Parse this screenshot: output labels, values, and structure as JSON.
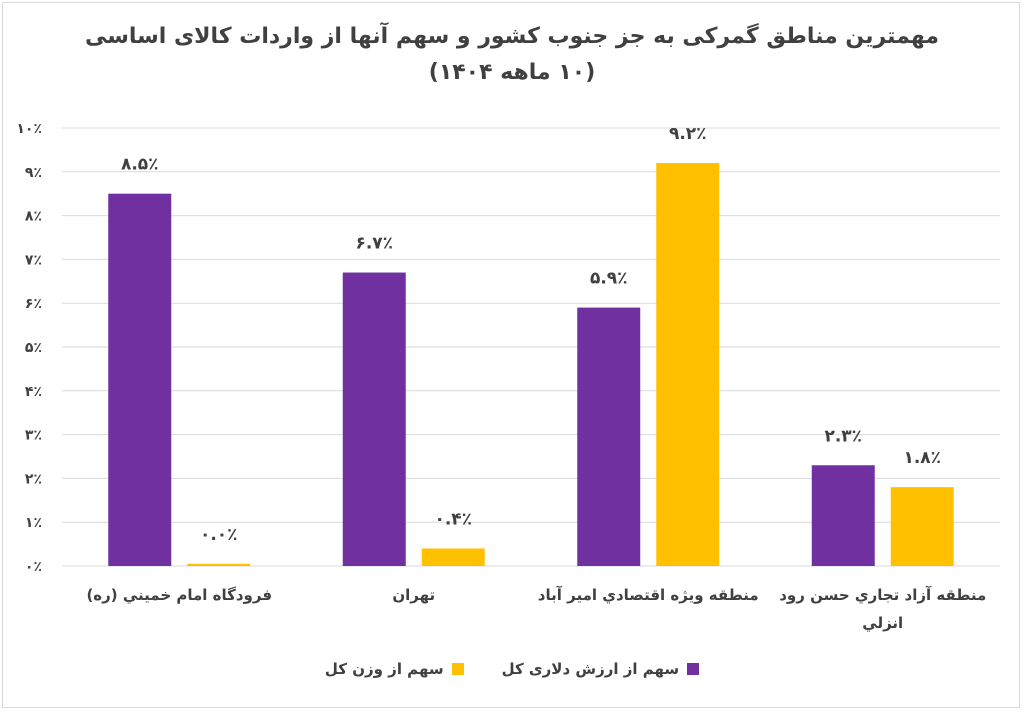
{
  "chart_data": {
    "type": "bar",
    "title": [
      "مهمترین مناطق گمرکی به جز جنوب کشور و سهم آنها از واردات کالای اساسی",
      "(۱۰ ماهه ۱۴۰۴)"
    ],
    "categories": [
      "فرودگاه امام خمیني (ره)",
      "تهران",
      "منطقه ويژه اقتصادي امير آباد",
      "منطقه آزاد تجاري حسن رود انزلي"
    ],
    "series": [
      {
        "name": "سهم از ارزش دلاری کل",
        "color": "#7030a0",
        "values": [
          8.5,
          6.7,
          5.9,
          2.3
        ],
        "labels": [
          "۸.۵٪",
          "۶.۷٪",
          "۵.۹٪",
          "۲.۳٪"
        ]
      },
      {
        "name": "سهم از وزن کل",
        "color": "#ffc000",
        "values": [
          0.05,
          0.4,
          9.2,
          1.8
        ],
        "labels": [
          "۰.۰٪",
          "۰.۴٪",
          "۹.۲٪",
          "۱.۸٪"
        ]
      }
    ],
    "yticks": [
      "۰٪",
      "۱٪",
      "۲٪",
      "۳٪",
      "۴٪",
      "۵٪",
      "۶٪",
      "۷٪",
      "۸٪",
      "۹٪",
      "۱۰٪"
    ],
    "ylim": [
      0,
      10
    ],
    "grid": true,
    "legend_position": "bottom",
    "colors": {
      "gridline": "#d9d9d9",
      "text": "#404040"
    }
  }
}
